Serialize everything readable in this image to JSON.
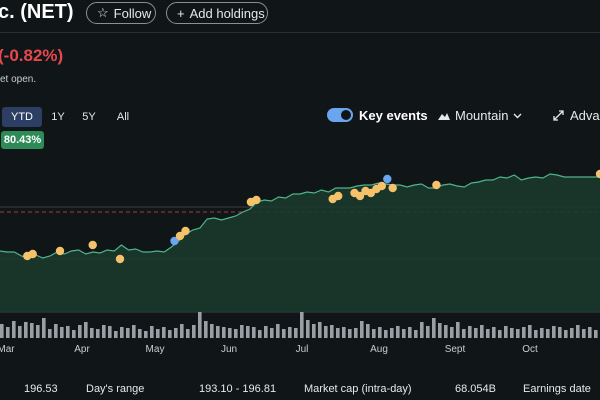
{
  "header": {
    "title": "c. (NET)",
    "follow_label": "Follow",
    "add_label": "Add holdings",
    "change_text": "(-0.82%)",
    "market_status": "et open."
  },
  "ranges": {
    "items": [
      "YTD",
      "1Y",
      "5Y",
      "All"
    ],
    "selected": "YTD",
    "ytd_change": "80.43%"
  },
  "controls": {
    "key_events_label": "Key events",
    "key_events_on": true,
    "chart_type_label": "Mountain",
    "advanced_label": "Advar"
  },
  "colors": {
    "background": "#101518",
    "price_line": "#4fb58a",
    "area_fill": "#1b3a2c",
    "negative": "#e5484d",
    "positive_badge": "#2e8b57",
    "event_dot": "#f5c26b",
    "event_dot_alt": "#6aa5ee",
    "volume_bar": "#9a9fa5"
  },
  "icons": {
    "follow": "star-outline-icon",
    "add": "plus-icon",
    "chart_type": "mountain-icon",
    "dropdown": "chevron-down-icon",
    "advanced": "expand-arrows-icon"
  },
  "chart_data": {
    "type": "area",
    "x_tick_labels": [
      "Mar",
      "Apr",
      "May",
      "Jun",
      "Jul",
      "Aug",
      "Sept",
      "Oct"
    ],
    "price_series": {
      "y": [
        71,
        70,
        70,
        66,
        64,
        67,
        64,
        66,
        70,
        68,
        71,
        72,
        68,
        70,
        69,
        72,
        71,
        77,
        72,
        73,
        70,
        70,
        71,
        70,
        75,
        81,
        88,
        92,
        94,
        103,
        104,
        102,
        104,
        106,
        110,
        113,
        120,
        122,
        121,
        125,
        124,
        128,
        128,
        130,
        129,
        132,
        130,
        134,
        134,
        134,
        136,
        137,
        137,
        139,
        138,
        137,
        137,
        135,
        137,
        138,
        134,
        134,
        137,
        138,
        136,
        135,
        139,
        140,
        142,
        142,
        145,
        144,
        147,
        142,
        144,
        145,
        144,
        148,
        147,
        145,
        145,
        145,
        145,
        145,
        145
      ]
    },
    "reference_line": true,
    "key_events": [
      {
        "x": 5,
        "y": 66,
        "kind": "event"
      },
      {
        "x": 6,
        "y": 68,
        "kind": "event"
      },
      {
        "x": 11,
        "y": 71,
        "kind": "event"
      },
      {
        "x": 17,
        "y": 77,
        "kind": "event"
      },
      {
        "x": 22,
        "y": 63,
        "kind": "event"
      },
      {
        "x": 32,
        "y": 81,
        "kind": "alt"
      },
      {
        "x": 33,
        "y": 86,
        "kind": "event"
      },
      {
        "x": 34,
        "y": 91,
        "kind": "event"
      },
      {
        "x": 46,
        "y": 120,
        "kind": "event"
      },
      {
        "x": 47,
        "y": 122,
        "kind": "event"
      },
      {
        "x": 61,
        "y": 123,
        "kind": "event"
      },
      {
        "x": 62,
        "y": 126,
        "kind": "event"
      },
      {
        "x": 65,
        "y": 129,
        "kind": "event"
      },
      {
        "x": 66,
        "y": 126,
        "kind": "event"
      },
      {
        "x": 67,
        "y": 131,
        "kind": "event"
      },
      {
        "x": 68,
        "y": 129,
        "kind": "event"
      },
      {
        "x": 69,
        "y": 133,
        "kind": "event"
      },
      {
        "x": 70,
        "y": 136,
        "kind": "event"
      },
      {
        "x": 71,
        "y": 143,
        "kind": "alt"
      },
      {
        "x": 72,
        "y": 134,
        "kind": "event"
      },
      {
        "x": 80,
        "y": 137,
        "kind": "event"
      },
      {
        "x": 110,
        "y": 148,
        "kind": "event"
      }
    ],
    "volume": [
      14,
      11,
      17,
      12,
      16,
      15,
      13,
      20,
      9,
      14,
      11,
      12,
      8,
      13,
      16,
      10,
      9,
      13,
      12,
      7,
      11,
      10,
      13,
      9,
      7,
      12,
      9,
      11,
      8,
      10,
      14,
      9,
      13,
      26,
      17,
      14,
      12,
      11,
      10,
      9,
      13,
      12,
      11,
      8,
      12,
      10,
      14,
      9,
      11,
      10,
      26,
      18,
      14,
      16,
      12,
      13,
      10,
      11,
      9,
      10,
      17,
      14,
      9,
      11,
      8,
      10,
      12,
      9,
      11,
      8,
      16,
      12,
      20,
      15,
      13,
      11,
      16,
      9,
      12,
      10,
      13,
      9,
      11,
      8,
      12,
      10,
      9,
      11,
      13,
      8,
      10,
      9,
      12,
      11,
      8,
      10,
      13,
      9,
      11,
      8
    ]
  },
  "stats": {
    "prev_value": "196.53",
    "days_range_label": "Day's range",
    "days_range_value": "193.10 - 196.81",
    "market_cap_label": "Market cap (intra-day)",
    "market_cap_value": "68.054B",
    "earnings_label": "Earnings date"
  }
}
